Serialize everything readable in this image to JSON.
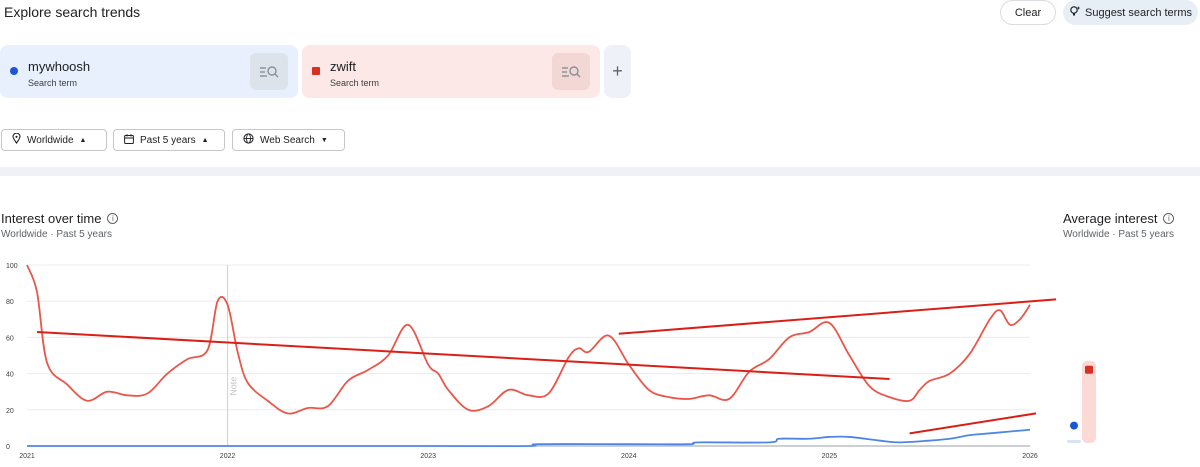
{
  "header": {
    "title": "Explore search trends",
    "clear_label": "Clear",
    "suggest_label": "Suggest search terms"
  },
  "terms": [
    {
      "name": "mywhoosh",
      "sub": "Search term",
      "color": "#1a56d6",
      "bg": "#e8f0fe"
    },
    {
      "name": "zwift",
      "sub": "Search term",
      "color": "#d93025",
      "bg": "#fce8e6"
    }
  ],
  "add_label": "+",
  "filters": {
    "region": "Worldwide",
    "period": "Past 5 years",
    "property": "Web Search"
  },
  "interest": {
    "title": "Interest over time",
    "subtitle": "Worldwide · Past 5 years",
    "note": "Note"
  },
  "average": {
    "title": "Average interest",
    "subtitle": "Worldwide · Past 5 years"
  },
  "chart_data": {
    "type": "line",
    "ylim": [
      0,
      100
    ],
    "yticks": [
      0,
      20,
      40,
      60,
      80,
      100
    ],
    "xlim": [
      2021,
      2026
    ],
    "xticks": [
      "2021",
      "2022",
      "2023",
      "2024",
      "2025",
      "2026"
    ],
    "grid": true,
    "series": [
      {
        "name": "zwift",
        "color": "#e8574a",
        "x": [
          2021.0,
          2021.05,
          2021.1,
          2021.2,
          2021.3,
          2021.4,
          2021.5,
          2021.6,
          2021.7,
          2021.8,
          2021.9,
          2021.95,
          2022.0,
          2022.05,
          2022.1,
          2022.2,
          2022.3,
          2022.4,
          2022.5,
          2022.6,
          2022.7,
          2022.8,
          2022.9,
          2023.0,
          2023.05,
          2023.1,
          2023.2,
          2023.3,
          2023.4,
          2023.5,
          2023.6,
          2023.7,
          2023.75,
          2023.8,
          2023.9,
          2024.0,
          2024.1,
          2024.2,
          2024.3,
          2024.4,
          2024.5,
          2024.6,
          2024.7,
          2024.8,
          2024.9,
          2025.0,
          2025.1,
          2025.2,
          2025.3,
          2025.4,
          2025.45,
          2025.5,
          2025.6,
          2025.7,
          2025.8,
          2025.85,
          2025.9,
          2025.95,
          2026.0
        ],
        "values": [
          100,
          85,
          46,
          34,
          25,
          30,
          28,
          29,
          40,
          48,
          53,
          80,
          78,
          52,
          35,
          25,
          18,
          21,
          22,
          36,
          42,
          50,
          67,
          45,
          40,
          31,
          20,
          22,
          31,
          28,
          29,
          49,
          54,
          52,
          61,
          45,
          31,
          27,
          26,
          28,
          26,
          41,
          48,
          60,
          63,
          68,
          50,
          33,
          27,
          25,
          31,
          36,
          40,
          51,
          70,
          75,
          67,
          70,
          78
        ]
      },
      {
        "name": "mywhoosh",
        "color": "#4e86e6",
        "x": [
          2021.0,
          2023.0,
          2023.5,
          2023.55,
          2024.0,
          2024.3,
          2024.35,
          2024.7,
          2024.75,
          2024.9,
          2025.0,
          2025.1,
          2025.25,
          2025.35,
          2025.5,
          2025.6,
          2025.7,
          2025.8,
          2025.9,
          2026.0
        ],
        "values": [
          0,
          0,
          0,
          1,
          1,
          1,
          2,
          2,
          4,
          4,
          5,
          5,
          3,
          2,
          3,
          4,
          6,
          7,
          8,
          9
        ]
      }
    ],
    "annotation_lines": [
      {
        "color": "#d92016",
        "x": [
          2021.05,
          2025.3
        ],
        "y": [
          63,
          37
        ]
      },
      {
        "color": "#d92016",
        "x": [
          2023.95,
          2026.13
        ],
        "y": [
          62,
          81
        ]
      },
      {
        "color": "#d92016",
        "x": [
          2025.4,
          2026.03
        ],
        "y": [
          7,
          18
        ]
      }
    ],
    "average_interest": [
      {
        "name": "mywhoosh",
        "value": 8,
        "color": "#1a56d6"
      },
      {
        "name": "zwift",
        "value": 39,
        "color": "#d93025"
      }
    ]
  }
}
